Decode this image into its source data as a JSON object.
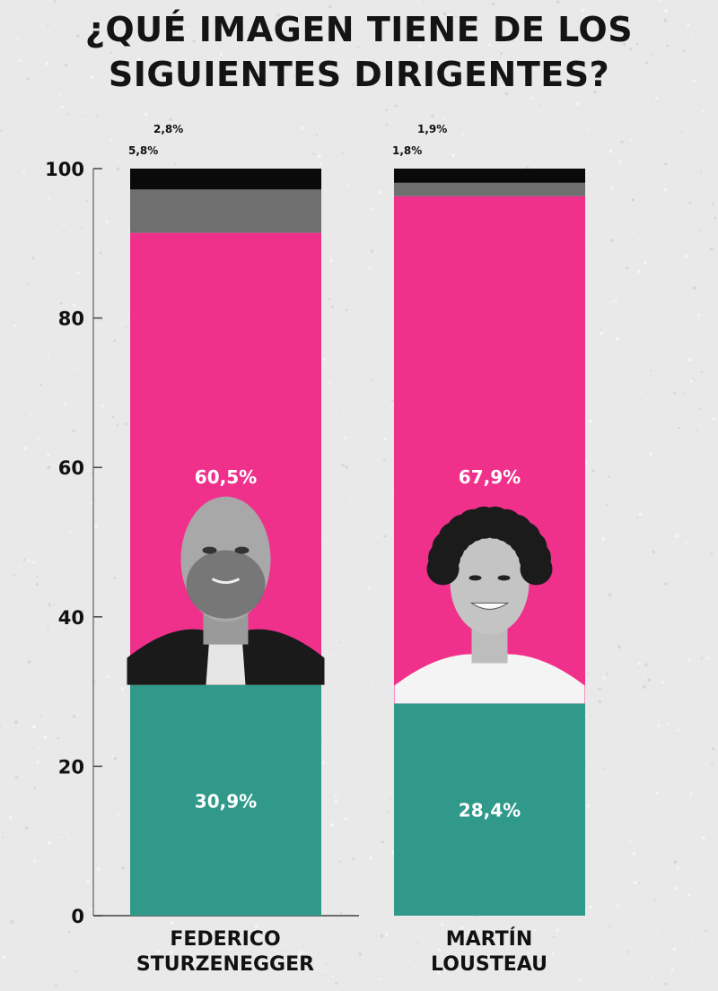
{
  "title_lines": [
    "¿QUÉ IMAGEN TIENE DE LOS",
    "SIGUIENTES DIRIGENTES?"
  ],
  "colors": {
    "positiva": "#30998a",
    "negativa": "#f0318c",
    "ns_nc": "#6f6f6f",
    "otro": "#0a0a0a",
    "background": "#e9e9e9"
  },
  "chart_data": {
    "type": "bar",
    "stacked": true,
    "categories": [
      {
        "lines": [
          "FEDERICO",
          "STURZENEGGER"
        ]
      },
      {
        "lines": [
          "MARTÍN",
          "LOUSTEAU"
        ]
      }
    ],
    "ylim": [
      0,
      100
    ],
    "yticks": [
      "0",
      "20",
      "40",
      "60",
      "80",
      "100"
    ],
    "segments": [
      {
        "color_key": "positiva",
        "values": [
          30.9,
          28.4
        ],
        "labels": [
          "30,9%",
          "28,4%"
        ]
      },
      {
        "color_key": "negativa",
        "values": [
          60.5,
          67.9
        ],
        "labels": [
          "60,5%",
          "67,9%"
        ]
      },
      {
        "color_key": "ns_nc",
        "values": [
          5.8,
          1.8
        ],
        "labels": [
          "5,8%",
          "1,8%"
        ]
      },
      {
        "color_key": "otro",
        "values": [
          2.8,
          1.9
        ],
        "labels": [
          "2,8%",
          "1,9%"
        ]
      }
    ]
  }
}
